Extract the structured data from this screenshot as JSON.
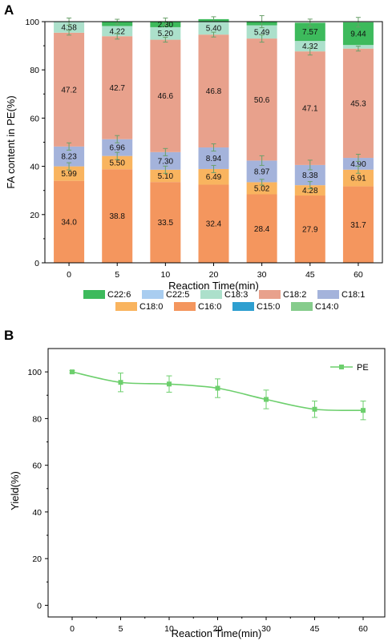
{
  "panel_a": {
    "panel_label": "A",
    "chart_data": {
      "type": "bar",
      "stacked": true,
      "categories": [
        "0",
        "5",
        "10",
        "20",
        "30",
        "45",
        "60"
      ],
      "xlabel": "Reaction Time(min)",
      "ylabel": "FA content in PE(%)",
      "ylim": [
        0,
        100
      ],
      "yticks": [
        0,
        20,
        40,
        60,
        80,
        100
      ],
      "series": [
        {
          "name": "C16:0",
          "color": "#F4965E",
          "values": [
            34.0,
            38.8,
            33.5,
            32.4,
            28.4,
            27.9,
            31.7
          ],
          "labels": [
            "34.0",
            "38.8",
            "33.5",
            "32.4",
            "28.4",
            "27.9",
            "31.7"
          ]
        },
        {
          "name": "C18:0",
          "color": "#F9B45F",
          "values": [
            5.99,
            5.5,
            5.1,
            6.49,
            5.02,
            4.28,
            6.91
          ],
          "labels": [
            "5.99",
            "5.50",
            "5.10",
            "6.49",
            "5.02",
            "4.28",
            "6.91"
          ]
        },
        {
          "name": "C18:1",
          "color": "#A4B3DB",
          "values": [
            8.23,
            6.96,
            7.3,
            8.94,
            8.97,
            8.38,
            4.9
          ],
          "labels": [
            "8.23",
            "6.96",
            "7.30",
            "8.94",
            "8.97",
            "8.38",
            "4.90"
          ]
        },
        {
          "name": "C18:2",
          "color": "#E8A18C",
          "values": [
            47.2,
            42.7,
            46.6,
            46.8,
            50.6,
            47.1,
            45.3
          ],
          "labels": [
            "47.2",
            "42.7",
            "46.6",
            "46.8",
            "50.6",
            "47.1",
            "45.3"
          ]
        },
        {
          "name": "C18:3",
          "color": "#ACE0CB",
          "values": [
            4.58,
            4.22,
            5.2,
            5.4,
            5.49,
            4.32,
            1.5
          ],
          "labels": [
            "4.58",
            "4.22",
            "5.20",
            "5.40",
            "5.49",
            "4.32",
            ""
          ]
        },
        {
          "name": "C22:5",
          "color": "#A9CDF0",
          "values": [
            0,
            0,
            0,
            0,
            0,
            0,
            0
          ],
          "labels": [
            "",
            "",
            "",
            "",
            "",
            "",
            ""
          ]
        },
        {
          "name": "C22:6",
          "color": "#3DBA5C",
          "values": [
            0,
            1.8,
            2.3,
            1.0,
            1.5,
            7.57,
            9.44
          ],
          "labels": [
            "",
            "",
            "2.30",
            "",
            "",
            "7.57",
            "9.44"
          ]
        },
        {
          "name": "C15:0",
          "color": "#2E9FD0",
          "values": [
            0,
            0,
            0,
            0,
            0,
            0,
            0
          ],
          "labels": [
            "",
            "",
            "",
            "",
            "",
            "",
            ""
          ]
        },
        {
          "name": "C14:0",
          "color": "#86CC8C",
          "values": [
            0,
            0,
            0,
            0,
            0,
            0,
            0
          ],
          "labels": [
            "",
            "",
            "",
            "",
            "",
            "",
            ""
          ]
        }
      ],
      "errors": {
        "C18:2": [
          1.0,
          1.2,
          1.0,
          1.0,
          1.5,
          1.5,
          1.0
        ],
        "C18:1": [
          1.5,
          1.5,
          1.5,
          1.5,
          2.0,
          2.0,
          1.5
        ],
        "C18:0": [
          1.5,
          1.5,
          1.5,
          1.5,
          1.2,
          1.5,
          1.5
        ],
        "top": [
          1.5,
          1.0,
          1.5,
          1.0,
          2.5,
          1.5,
          2.0
        ]
      },
      "legend_order": [
        "C22:6",
        "C22:5",
        "C18:3",
        "C18:2",
        "C18:1",
        "C18:0",
        "C16:0",
        "C15:0",
        "C14:0"
      ],
      "legend_position": "bottom"
    }
  },
  "panel_b": {
    "panel_label": "B",
    "chart_data": {
      "type": "line",
      "x": [
        "0",
        "5",
        "10",
        "20",
        "30",
        "45",
        "60"
      ],
      "xlabel": "Reaction Time(min)",
      "ylabel": "Yield(%)",
      "ylim": [
        -5,
        110
      ],
      "yticks": [
        0,
        20,
        40,
        60,
        80,
        100
      ],
      "series": [
        {
          "name": "PE",
          "color": "#6DCF6D",
          "values": [
            100,
            95.5,
            94.8,
            93.0,
            88.2,
            84.0,
            83.5
          ],
          "errors": [
            0.5,
            4.0,
            3.5,
            4.0,
            4.0,
            3.5,
            4.0
          ]
        }
      ],
      "legend_position": "top-right"
    }
  }
}
